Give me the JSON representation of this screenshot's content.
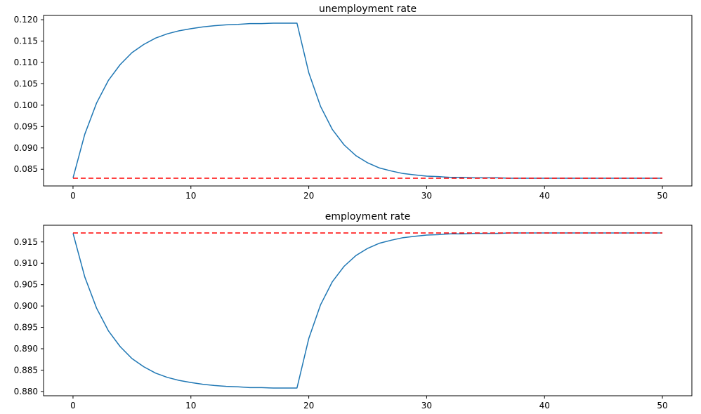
{
  "figure": {
    "background": "#ffffff"
  },
  "chart_data": [
    {
      "type": "line",
      "title": "unemployment rate",
      "xlim": [
        -2.5,
        52.5
      ],
      "ylim": [
        0.0811,
        0.121
      ],
      "xticks": [
        0,
        10,
        20,
        30,
        40,
        50
      ],
      "xtick_labels": [
        "0",
        "10",
        "20",
        "30",
        "40",
        "50"
      ],
      "yticks": [
        0.085,
        0.09,
        0.095,
        0.1,
        0.105,
        0.11,
        0.115,
        0.12
      ],
      "ytick_labels": [
        "0.085",
        "0.090",
        "0.095",
        "0.100",
        "0.105",
        "0.110",
        "0.115",
        "0.120"
      ],
      "grid": false,
      "legend": "none",
      "x": [
        0,
        1,
        2,
        3,
        4,
        5,
        6,
        7,
        8,
        9,
        10,
        11,
        12,
        13,
        14,
        15,
        16,
        17,
        18,
        19,
        20,
        21,
        22,
        23,
        24,
        25,
        26,
        27,
        28,
        29,
        30,
        31,
        32,
        33,
        34,
        35,
        36,
        37,
        38,
        39,
        40,
        41,
        42,
        43,
        44,
        45,
        46,
        47,
        48,
        49,
        50
      ],
      "series": [
        {
          "name": "unemployment-rate-path",
          "color": "#1f77b4",
          "style": "solid",
          "values": [
            0.083,
            0.0932,
            0.1005,
            0.1058,
            0.1095,
            0.1123,
            0.1142,
            0.1157,
            0.1167,
            0.1174,
            0.1179,
            0.1183,
            0.1186,
            0.1188,
            0.1189,
            0.1191,
            0.1191,
            0.1192,
            0.1192,
            0.1192,
            0.1076,
            0.0997,
            0.0943,
            0.0907,
            0.0882,
            0.0865,
            0.0853,
            0.0846,
            0.084,
            0.0837,
            0.0834,
            0.0833,
            0.0831,
            0.0831,
            0.083,
            0.083,
            0.083,
            0.0829,
            0.0829,
            0.0829,
            0.0829,
            0.0829,
            0.0829,
            0.0829,
            0.0829,
            0.0829,
            0.0829,
            0.0829,
            0.0829,
            0.0829,
            0.0829
          ]
        },
        {
          "name": "unemployment-steady-state-dashed",
          "color": "#ff0000",
          "style": "dashed",
          "constant": 0.0829
        }
      ]
    },
    {
      "type": "line",
      "title": "employment rate",
      "xlim": [
        -2.5,
        52.5
      ],
      "ylim": [
        0.879,
        0.9189
      ],
      "xticks": [
        0,
        10,
        20,
        30,
        40,
        50
      ],
      "xtick_labels": [
        "0",
        "10",
        "20",
        "30",
        "40",
        "50"
      ],
      "yticks": [
        0.88,
        0.885,
        0.89,
        0.895,
        0.9,
        0.905,
        0.91,
        0.915
      ],
      "ytick_labels": [
        "0.880",
        "0.885",
        "0.890",
        "0.895",
        "0.900",
        "0.905",
        "0.910",
        "0.915"
      ],
      "grid": false,
      "legend": "none",
      "x": [
        0,
        1,
        2,
        3,
        4,
        5,
        6,
        7,
        8,
        9,
        10,
        11,
        12,
        13,
        14,
        15,
        16,
        17,
        18,
        19,
        20,
        21,
        22,
        23,
        24,
        25,
        26,
        27,
        28,
        29,
        30,
        31,
        32,
        33,
        34,
        35,
        36,
        37,
        38,
        39,
        40,
        41,
        42,
        43,
        44,
        45,
        46,
        47,
        48,
        49,
        50
      ],
      "series": [
        {
          "name": "employment-rate-path",
          "color": "#1f77b4",
          "style": "solid",
          "values": [
            0.917,
            0.9068,
            0.8995,
            0.8942,
            0.8905,
            0.8877,
            0.8858,
            0.8843,
            0.8833,
            0.8826,
            0.8821,
            0.8817,
            0.8814,
            0.8812,
            0.8811,
            0.8809,
            0.8809,
            0.8808,
            0.8808,
            0.8808,
            0.8924,
            0.9003,
            0.9057,
            0.9093,
            0.9118,
            0.9135,
            0.9147,
            0.9154,
            0.916,
            0.9163,
            0.9166,
            0.9167,
            0.9169,
            0.9169,
            0.917,
            0.917,
            0.917,
            0.9171,
            0.9171,
            0.9171,
            0.9171,
            0.9171,
            0.9171,
            0.9171,
            0.9171,
            0.9171,
            0.9171,
            0.9171,
            0.9171,
            0.9171,
            0.9171
          ]
        },
        {
          "name": "employment-steady-state-dashed",
          "color": "#ff0000",
          "style": "dashed",
          "constant": 0.9171
        }
      ]
    }
  ]
}
